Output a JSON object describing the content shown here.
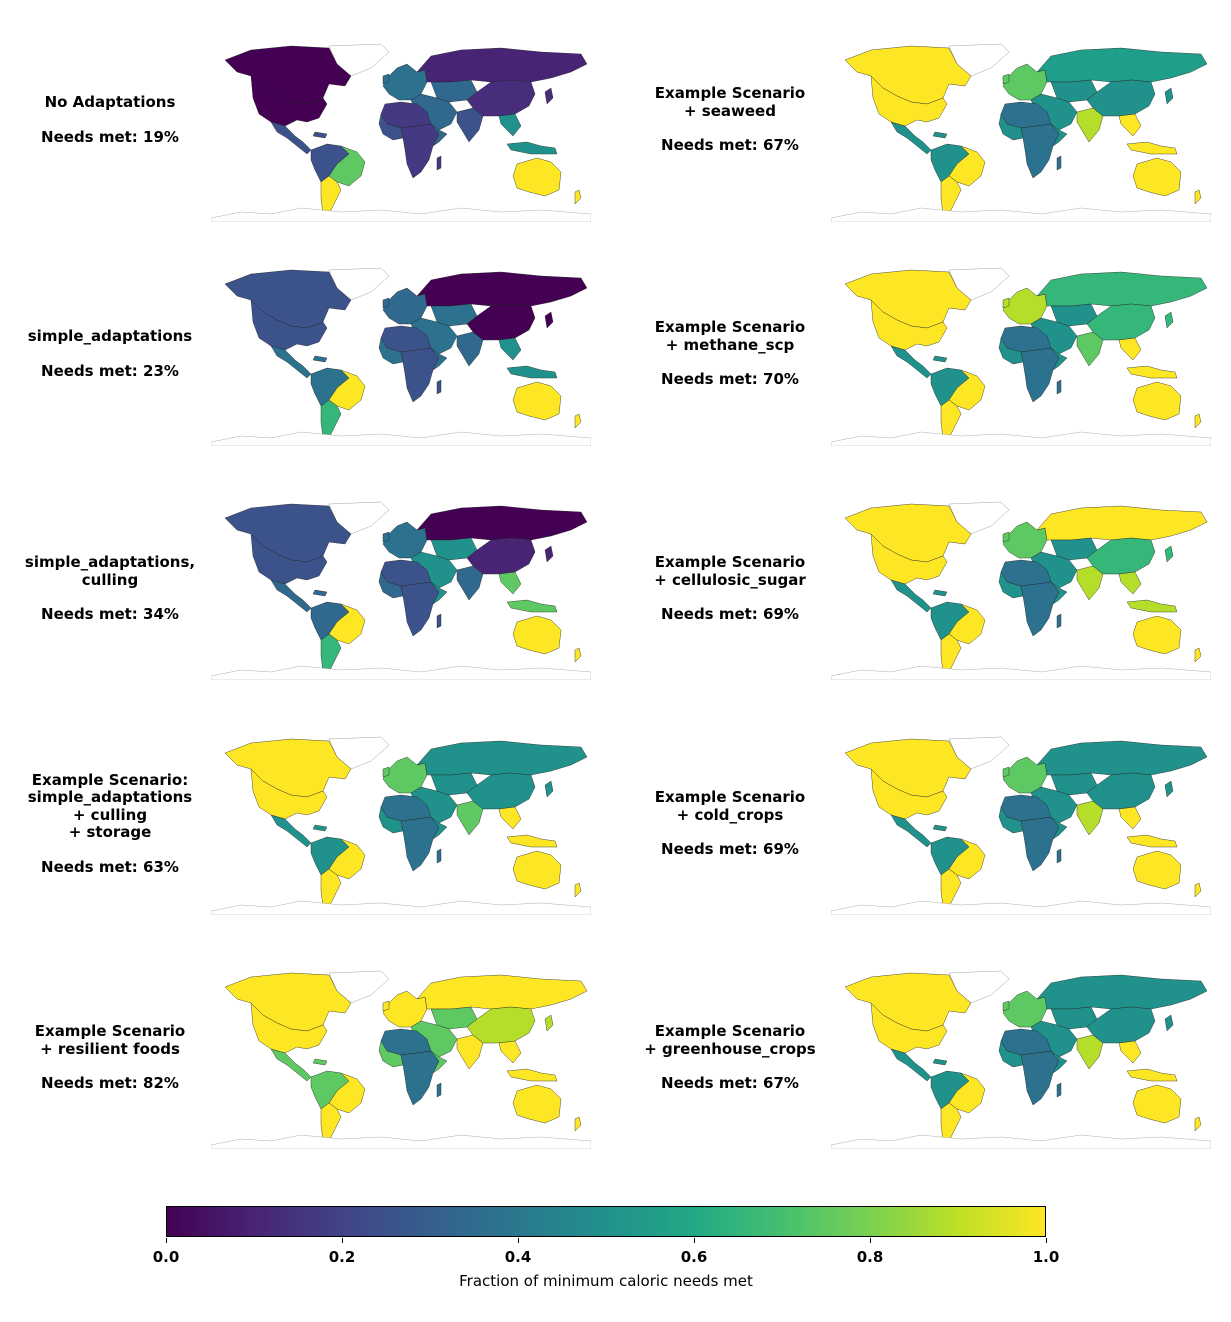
{
  "panels": [
    {
      "title": "No Adaptations",
      "needs": "Needs met: 19%",
      "c": {
        "na": "#440154",
        "sa": "#3b528b",
        "brazil": "#5ec962",
        "argentina": "#fde725",
        "eu": "#2c728e",
        "ru": "#482475",
        "af": "#443983",
        "me": "#31688e",
        "in": "#3b528b",
        "cn": "#472d7b",
        "sea": "#21918c",
        "au": "#fde725"
      }
    },
    {
      "title": "Example Scenario\n+ seaweed",
      "needs": "Needs met: 67%",
      "c": {
        "na": "#fde725",
        "sa": "#21918c",
        "brazil": "#fde725",
        "argentina": "#fde725",
        "eu": "#5ec962",
        "ru": "#1f9e89",
        "af": "#2c728e",
        "me": "#21918c",
        "in": "#b5de2b",
        "cn": "#21918c",
        "sea": "#fde725",
        "au": "#fde725"
      }
    },
    {
      "title": "simple_adaptations",
      "needs": "Needs met: 23%",
      "c": {
        "na": "#3b528b",
        "sa": "#2c728e",
        "brazil": "#fde725",
        "argentina": "#35b779",
        "eu": "#31688e",
        "ru": "#440154",
        "af": "#3b528b",
        "me": "#2c728e",
        "in": "#31688e",
        "cn": "#440154",
        "sea": "#21918c",
        "au": "#fde725"
      }
    },
    {
      "title": "Example Scenario\n+ methane_scp",
      "needs": "Needs met: 70%",
      "c": {
        "na": "#fde725",
        "sa": "#21918c",
        "brazil": "#fde725",
        "argentina": "#fde725",
        "eu": "#b5de2b",
        "ru": "#35b779",
        "af": "#2c728e",
        "me": "#21918c",
        "in": "#5ec962",
        "cn": "#35b779",
        "sea": "#fde725",
        "au": "#fde725"
      }
    },
    {
      "title": "simple_adaptations,\nculling",
      "needs": "Needs met: 34%",
      "c": {
        "na": "#3b528b",
        "sa": "#31688e",
        "brazil": "#fde725",
        "argentina": "#35b779",
        "eu": "#2c728e",
        "ru": "#440154",
        "af": "#3b528b",
        "me": "#21918c",
        "in": "#31688e",
        "cn": "#482475",
        "sea": "#5ec962",
        "au": "#fde725"
      }
    },
    {
      "title": "Example Scenario\n+ cellulosic_sugar",
      "needs": "Needs met: 69%",
      "c": {
        "na": "#fde725",
        "sa": "#21918c",
        "brazil": "#fde725",
        "argentina": "#fde725",
        "eu": "#5ec962",
        "ru": "#fde725",
        "af": "#2c728e",
        "me": "#21918c",
        "in": "#b5de2b",
        "cn": "#35b779",
        "sea": "#b5de2b",
        "au": "#fde725"
      }
    },
    {
      "title": "Example Scenario:\nsimple_adaptations\n+ culling\n+ storage",
      "needs": "Needs met: 63%",
      "c": {
        "na": "#fde725",
        "sa": "#21918c",
        "brazil": "#fde725",
        "argentina": "#fde725",
        "eu": "#5ec962",
        "ru": "#21918c",
        "af": "#2c728e",
        "me": "#21918c",
        "in": "#5ec962",
        "cn": "#21918c",
        "sea": "#fde725",
        "au": "#fde725"
      }
    },
    {
      "title": "Example Scenario\n+ cold_crops",
      "needs": "Needs met: 69%",
      "c": {
        "na": "#fde725",
        "sa": "#21918c",
        "brazil": "#fde725",
        "argentina": "#fde725",
        "eu": "#5ec962",
        "ru": "#21918c",
        "af": "#2c728e",
        "me": "#21918c",
        "in": "#b5de2b",
        "cn": "#21918c",
        "sea": "#fde725",
        "au": "#fde725"
      }
    },
    {
      "title": "Example Scenario\n+ resilient foods",
      "needs": "Needs met: 82%",
      "c": {
        "na": "#fde725",
        "sa": "#5ec962",
        "brazil": "#fde725",
        "argentina": "#fde725",
        "eu": "#fde725",
        "ru": "#fde725",
        "af": "#2c728e",
        "me": "#5ec962",
        "in": "#fde725",
        "cn": "#b5de2b",
        "sea": "#fde725",
        "au": "#fde725"
      }
    },
    {
      "title": "Example Scenario\n+ greenhouse_crops",
      "needs": "Needs met: 67%",
      "c": {
        "na": "#fde725",
        "sa": "#21918c",
        "brazil": "#fde725",
        "argentina": "#fde725",
        "eu": "#5ec962",
        "ru": "#21918c",
        "af": "#2c728e",
        "me": "#21918c",
        "in": "#b5de2b",
        "cn": "#21918c",
        "sea": "#fde725",
        "au": "#fde725"
      }
    }
  ],
  "colorbar": {
    "label": "Fraction of minimum caloric needs met",
    "ticks": [
      "0.0",
      "0.2",
      "0.4",
      "0.6",
      "0.8",
      "1.0"
    ],
    "colormap": [
      "#440154",
      "#482475",
      "#414487",
      "#355f8d",
      "#2a788e",
      "#21918c",
      "#22a884",
      "#44bf70",
      "#7ad151",
      "#bddf26",
      "#fde725"
    ]
  }
}
